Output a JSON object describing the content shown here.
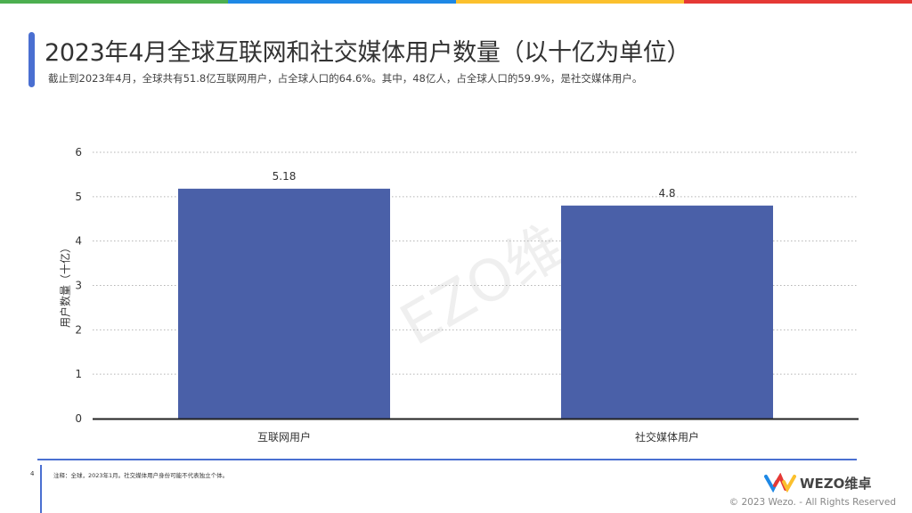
{
  "header": {
    "title": "2023年4月全球互联网和社交媒体用户数量（以十亿为单位）",
    "subtitle": "截止到2023年4月，全球共有51.8亿互联网用户，占全球人口的64.6%。其中，48亿人，占全球人口的59.9%，是社交媒体用户。"
  },
  "colors": {
    "accent": "#4a6fd1",
    "bar": "#4a60a8",
    "topbar": [
      "#4caf50",
      "#1e88e5",
      "#fbc02d",
      "#e53935"
    ]
  },
  "chart_data": {
    "type": "bar",
    "categories": [
      "互联网用户",
      "社交媒体用户"
    ],
    "values": [
      5.18,
      4.8
    ],
    "value_labels": [
      "5.18",
      "4.8"
    ],
    "ylabel": "用户数量（十亿）",
    "ylim": [
      0,
      6
    ],
    "yticks": [
      0,
      1,
      2,
      3,
      4,
      5,
      6
    ],
    "grid": true,
    "legend": "none"
  },
  "watermark": "EZO维",
  "footer": {
    "page_number": "4",
    "note": "注释：全球，2023年1月。社交媒体用户身份可能不代表独立个体。",
    "logo_text": "WEZO维卓",
    "copyright": "© 2023 Wezo. - All Rights Reserved"
  }
}
